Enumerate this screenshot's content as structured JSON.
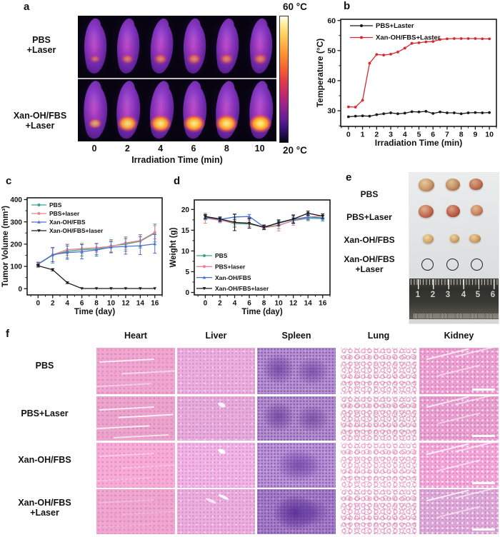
{
  "colors": {
    "black_series": "#1a1a1a",
    "red_series": "#d7282f",
    "green_series": "#3fa08a",
    "pink_series": "#e8828c",
    "blue_series": "#4a71c8"
  },
  "panel_a": {
    "label": "a",
    "row_labels": [
      [
        "PBS",
        "+Laser"
      ],
      [
        "Xan-OH/FBS",
        "+Laser"
      ]
    ],
    "time_labels": [
      "0",
      "2",
      "4",
      "6",
      "8",
      "10"
    ],
    "xlabel": "Irradiation Time (min)",
    "colorbar_top": "60 °C",
    "colorbar_bottom": "20 °C"
  },
  "panel_b": {
    "label": "b"
  },
  "panel_c": {
    "label": "c"
  },
  "panel_d": {
    "label": "d"
  },
  "panel_e": {
    "label": "e",
    "row_labels": [
      [
        "PBS"
      ],
      [
        "PBS+Laser"
      ],
      [
        "Xan-OH/FBS"
      ],
      [
        "Xan-OH/FBS",
        "+Laser"
      ]
    ],
    "ruler_numbers": [
      "1",
      "2",
      "3",
      "4",
      "5",
      "6"
    ]
  },
  "panel_f": {
    "label": "f",
    "organ_headers": [
      "Heart",
      "Liver",
      "Spleen",
      "Lung",
      "Kidney"
    ],
    "row_labels": [
      [
        "PBS"
      ],
      [
        "PBS+Laser"
      ],
      [
        "Xan-OH/FBS"
      ],
      [
        "Xan-OH/FBS",
        "+Laser"
      ]
    ]
  },
  "chart_data": [
    {
      "panel": "b",
      "type": "line",
      "xlabel": "Irradiation Time (min)",
      "ylabel": "Temperature (°C)",
      "xlim": [
        -0.55,
        10.5
      ],
      "ylim": [
        24.8,
        60.4
      ],
      "xticks": [
        0,
        1,
        2,
        3,
        4,
        5,
        6,
        7,
        8,
        9,
        10
      ],
      "yticks": [
        30,
        40,
        50,
        60
      ],
      "minor_x": 0.5,
      "minor_y": 5,
      "legend_pos": "top-left",
      "x": [
        0,
        0.5,
        1,
        1.5,
        2,
        2.5,
        3,
        3.5,
        4,
        4.5,
        5,
        5.5,
        6,
        6.5,
        7,
        7.5,
        8,
        8.5,
        9,
        9.5,
        10
      ],
      "series": [
        {
          "name": "PBS+Laster",
          "color": "#1a1a1a",
          "marker": "circle",
          "values": [
            28.0,
            28.2,
            28.3,
            28.2,
            28.7,
            29.0,
            29.3,
            29.0,
            29.2,
            29.7,
            29.6,
            29.8,
            29.1,
            29.6,
            29.3,
            29.3,
            29.0,
            29.3,
            29.4,
            29.3,
            29.4
          ]
        },
        {
          "name": "Xan-OH/FBS+Laster",
          "color": "#d7282f",
          "marker": "circle",
          "values": [
            31.3,
            31.2,
            33.5,
            45.8,
            48.7,
            48.5,
            48.8,
            49.5,
            50.8,
            52.4,
            52.6,
            52.9,
            53.0,
            53.7,
            53.9,
            54.0,
            54.0,
            54.0,
            54.0,
            53.9,
            53.9
          ]
        }
      ]
    },
    {
      "panel": "c",
      "type": "line",
      "xlabel": "Time (day)",
      "ylabel": "Tumor Volume (mm³)",
      "xlim": [
        -1.5,
        17
      ],
      "ylim": [
        -28,
        408
      ],
      "xticks": [
        0,
        2,
        4,
        6,
        8,
        10,
        12,
        14,
        16
      ],
      "yticks": [
        0,
        100,
        200,
        300,
        400
      ],
      "minor_x": 1,
      "minor_y": 50,
      "legend_pos": "top-left",
      "x": [
        0,
        2,
        4,
        6,
        8,
        10,
        12,
        14,
        16
      ],
      "series": [
        {
          "name": "PBS",
          "color": "#3fa08a",
          "marker": "circle",
          "values": [
            110,
            150,
            168,
            175,
            178,
            192,
            200,
            213,
            250
          ],
          "errors": [
            8,
            35,
            30,
            28,
            25,
            28,
            32,
            30,
            40
          ]
        },
        {
          "name": "PBS+laser",
          "color": "#e8828c",
          "marker": "circle",
          "values": [
            112,
            152,
            175,
            180,
            184,
            190,
            205,
            216,
            253
          ],
          "errors": [
            8,
            30,
            25,
            22,
            20,
            25,
            28,
            25,
            30
          ]
        },
        {
          "name": "Xan-OH/FBS",
          "color": "#4a71c8",
          "marker": "triangle",
          "values": [
            110,
            153,
            162,
            166,
            174,
            186,
            190,
            193,
            201
          ],
          "errors": [
            8,
            32,
            30,
            32,
            28,
            25,
            35,
            40,
            42
          ]
        },
        {
          "name": "Xan-OH/FBS+laser",
          "color": "#1a1a1a",
          "marker": "triangle-down",
          "values": [
            103,
            85,
            27,
            1,
            1,
            1,
            1,
            1,
            1
          ],
          "errors": [
            6,
            5,
            4,
            0,
            0,
            0,
            0,
            0,
            0
          ]
        }
      ]
    },
    {
      "panel": "d",
      "type": "line",
      "xlabel": "Time (day)",
      "ylabel": "Weight (g)",
      "xlim": [
        -1.5,
        17
      ],
      "ylim": [
        -0.6,
        22.3
      ],
      "xticks": [
        0,
        2,
        4,
        6,
        8,
        10,
        12,
        14,
        16
      ],
      "yticks": [
        0,
        5,
        10,
        15,
        20
      ],
      "minor_x": 1,
      "minor_y": 2.5,
      "legend_pos": "bottom-left",
      "x": [
        0,
        2,
        4,
        6,
        8,
        10,
        12,
        14,
        16
      ],
      "series": [
        {
          "name": "PBS",
          "color": "#3fa08a",
          "marker": "circle",
          "values": [
            18.0,
            17.5,
            16.6,
            16.5,
            15.7,
            16.2,
            17.3,
            17.9,
            17.8
          ],
          "errors": [
            0.5,
            0.5,
            0.9,
            1.0,
            0.5,
            0.8,
            0.7,
            0.6,
            0.6
          ]
        },
        {
          "name": "PBS+laser",
          "color": "#e8828c",
          "marker": "circle",
          "values": [
            17.9,
            17.4,
            16.8,
            16.7,
            15.6,
            16.1,
            17.4,
            18.1,
            18.5
          ],
          "errors": [
            1.2,
            0.6,
            0.8,
            0.8,
            0.5,
            1.3,
            1.2,
            0.6,
            0.5
          ]
        },
        {
          "name": "Xan-OH/FBS",
          "color": "#4a71c8",
          "marker": "triangle",
          "values": [
            18.2,
            17.6,
            18.2,
            18.3,
            15.8,
            16.7,
            17.6,
            18.2,
            18.0
          ],
          "errors": [
            0.5,
            0.5,
            0.6,
            0.5,
            0.5,
            0.6,
            0.8,
            0.6,
            0.5
          ]
        },
        {
          "name": "Xan-OH/FBS+laser",
          "color": "#1a1a1a",
          "marker": "triangle-down",
          "values": [
            18.3,
            17.7,
            16.9,
            16.7,
            15.7,
            16.8,
            17.7,
            19.1,
            18.4
          ],
          "errors": [
            0.5,
            0.5,
            2.0,
            1.2,
            0.5,
            0.7,
            1.0,
            0.5,
            0.5
          ]
        }
      ]
    }
  ]
}
